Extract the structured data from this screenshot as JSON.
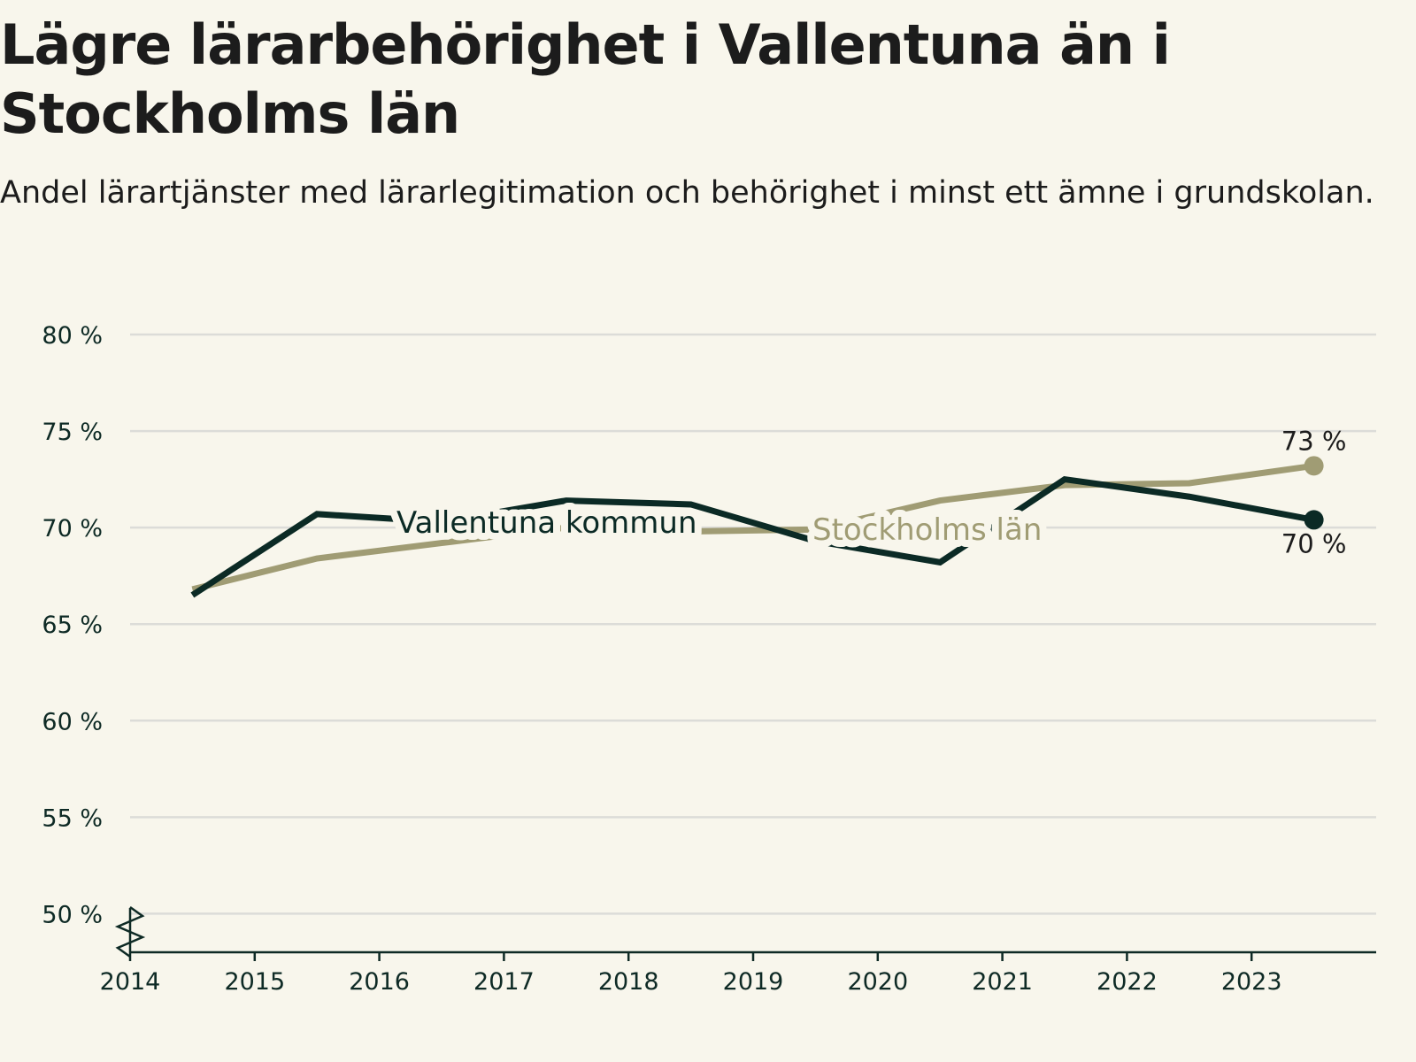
{
  "title": "Lägre lärarbehörighet i Vallentuna än i Stockholms län",
  "subtitle": "Andel lärartjänster med lärarlegitimation och behörighet i minst ett ämne i grundskolan.",
  "colors": {
    "background": "#f8f6ec",
    "vallentuna": "#0b2a25",
    "stockholm": "#a09c74",
    "grid": "#dcdcd8",
    "axis": "#0e2a25"
  },
  "chart_data": {
    "type": "line",
    "title": "Lägre lärarbehörighet i Vallentuna än i Stockholms län",
    "subtitle": "Andel lärartjänster med lärarlegitimation och behörighet i minst ett ämne i grundskolan.",
    "xlabel": "",
    "ylabel": "",
    "xlim": [
      2014,
      2024
    ],
    "ylim": [
      48,
      80
    ],
    "y_ticks": [
      50,
      55,
      60,
      65,
      70,
      75,
      80
    ],
    "y_tick_labels": [
      "50 %",
      "55 %",
      "60 %",
      "65 %",
      "70 %",
      "75 %",
      "80 %"
    ],
    "x_ticks": [
      2014,
      2015,
      2016,
      2017,
      2018,
      2019,
      2020,
      2021,
      2022,
      2023
    ],
    "x_tick_labels": [
      "2014",
      "2015",
      "2016",
      "2017",
      "2018",
      "2019",
      "2020",
      "2021",
      "2022",
      "2023"
    ],
    "axis_break": true,
    "grid": true,
    "series": [
      {
        "name": "Vallentuna kommun",
        "x": [
          2014.5,
          2015.5,
          2016.5,
          2017.5,
          2018.5,
          2019.5,
          2020.5,
          2021.5,
          2022.5,
          2023.5
        ],
        "values": [
          66.5,
          70.7,
          70.3,
          71.4,
          71.2,
          69.3,
          68.2,
          72.5,
          71.6,
          70.4
        ],
        "end_label": "70 %"
      },
      {
        "name": "Stockholms län",
        "x": [
          2014.5,
          2015.5,
          2016.5,
          2017.5,
          2018.5,
          2019.5,
          2020.5,
          2021.5,
          2022.5,
          2023.5
        ],
        "values": [
          66.8,
          68.4,
          69.2,
          70.0,
          69.8,
          69.9,
          71.4,
          72.2,
          72.3,
          73.2
        ],
        "end_label": "73 %"
      }
    ]
  }
}
